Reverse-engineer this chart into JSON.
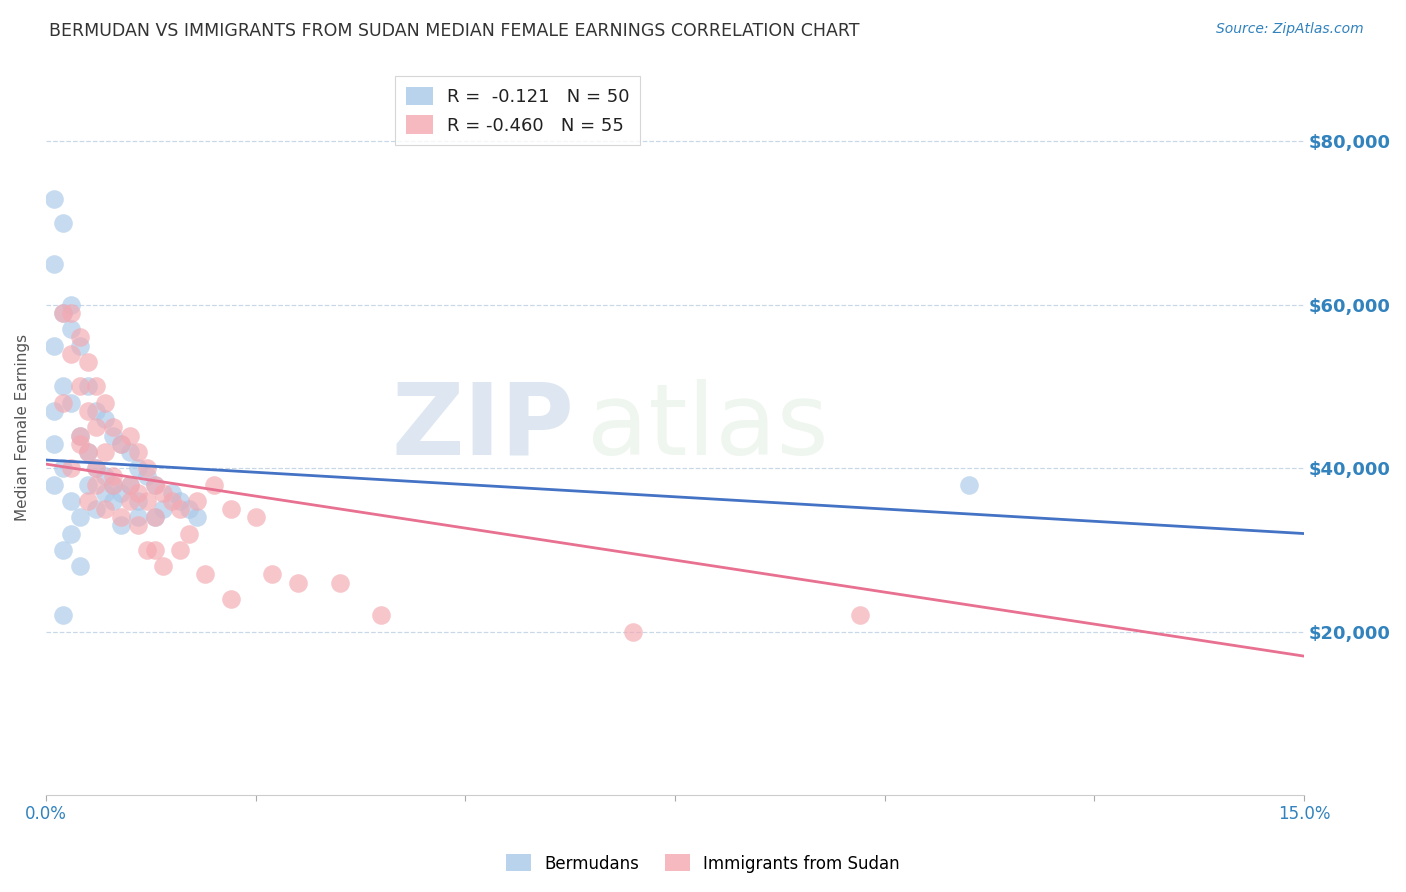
{
  "title": "BERMUDAN VS IMMIGRANTS FROM SUDAN MEDIAN FEMALE EARNINGS CORRELATION CHART",
  "source": "Source: ZipAtlas.com",
  "ylabel": "Median Female Earnings",
  "y_ticks": [
    20000,
    40000,
    60000,
    80000
  ],
  "y_tick_labels": [
    "$20,000",
    "$40,000",
    "$60,000",
    "$80,000"
  ],
  "x_min": 0.0,
  "x_max": 0.15,
  "y_min": 0,
  "y_max": 90000,
  "watermark_zip": "ZIP",
  "watermark_atlas": "atlas",
  "legend_blue_r": "-0.121",
  "legend_blue_n": "50",
  "legend_pink_r": "-0.460",
  "legend_pink_n": "55",
  "blue_color": "#a8c8e8",
  "pink_color": "#f4a8b0",
  "line_blue": "#4472c4",
  "line_pink": "#e87090",
  "blue_line_x": [
    0.0,
    0.15
  ],
  "blue_line_y": [
    41000,
    32000
  ],
  "pink_line_x": [
    0.0,
    0.15
  ],
  "pink_line_y": [
    40500,
    17000
  ],
  "blue_points_x": [
    0.001,
    0.001,
    0.002,
    0.003,
    0.001,
    0.001,
    0.002,
    0.002,
    0.003,
    0.003,
    0.004,
    0.004,
    0.005,
    0.005,
    0.006,
    0.006,
    0.007,
    0.007,
    0.008,
    0.008,
    0.009,
    0.009,
    0.01,
    0.01,
    0.011,
    0.011,
    0.012,
    0.013,
    0.013,
    0.014,
    0.015,
    0.016,
    0.017,
    0.018,
    0.001,
    0.001,
    0.002,
    0.003,
    0.004,
    0.005,
    0.006,
    0.007,
    0.008,
    0.009,
    0.011,
    0.002,
    0.003,
    0.004,
    0.11,
    0.002
  ],
  "blue_points_y": [
    73000,
    65000,
    70000,
    60000,
    55000,
    47000,
    59000,
    50000,
    57000,
    48000,
    55000,
    44000,
    50000,
    42000,
    47000,
    40000,
    46000,
    39000,
    44000,
    38000,
    43000,
    37000,
    42000,
    38000,
    40000,
    36000,
    39000,
    38000,
    34000,
    35000,
    37000,
    36000,
    35000,
    34000,
    43000,
    38000,
    40000,
    36000,
    34000,
    38000,
    35000,
    37000,
    36000,
    33000,
    34000,
    30000,
    32000,
    28000,
    38000,
    22000
  ],
  "pink_points_x": [
    0.002,
    0.003,
    0.003,
    0.004,
    0.004,
    0.004,
    0.005,
    0.005,
    0.005,
    0.006,
    0.006,
    0.006,
    0.007,
    0.007,
    0.008,
    0.008,
    0.009,
    0.01,
    0.01,
    0.011,
    0.011,
    0.012,
    0.012,
    0.013,
    0.013,
    0.014,
    0.015,
    0.016,
    0.017,
    0.018,
    0.02,
    0.022,
    0.025,
    0.027,
    0.03,
    0.035,
    0.04,
    0.002,
    0.003,
    0.004,
    0.005,
    0.006,
    0.007,
    0.008,
    0.009,
    0.01,
    0.011,
    0.012,
    0.014,
    0.016,
    0.019,
    0.022,
    0.07,
    0.097,
    0.013
  ],
  "pink_points_y": [
    59000,
    59000,
    54000,
    56000,
    50000,
    44000,
    53000,
    47000,
    42000,
    50000,
    45000,
    40000,
    48000,
    42000,
    45000,
    39000,
    43000,
    44000,
    38000,
    42000,
    37000,
    40000,
    36000,
    38000,
    34000,
    37000,
    36000,
    35000,
    32000,
    36000,
    38000,
    35000,
    34000,
    27000,
    26000,
    26000,
    22000,
    48000,
    40000,
    43000,
    36000,
    38000,
    35000,
    38000,
    34000,
    36000,
    33000,
    30000,
    28000,
    30000,
    27000,
    24000,
    20000,
    22000,
    30000
  ]
}
